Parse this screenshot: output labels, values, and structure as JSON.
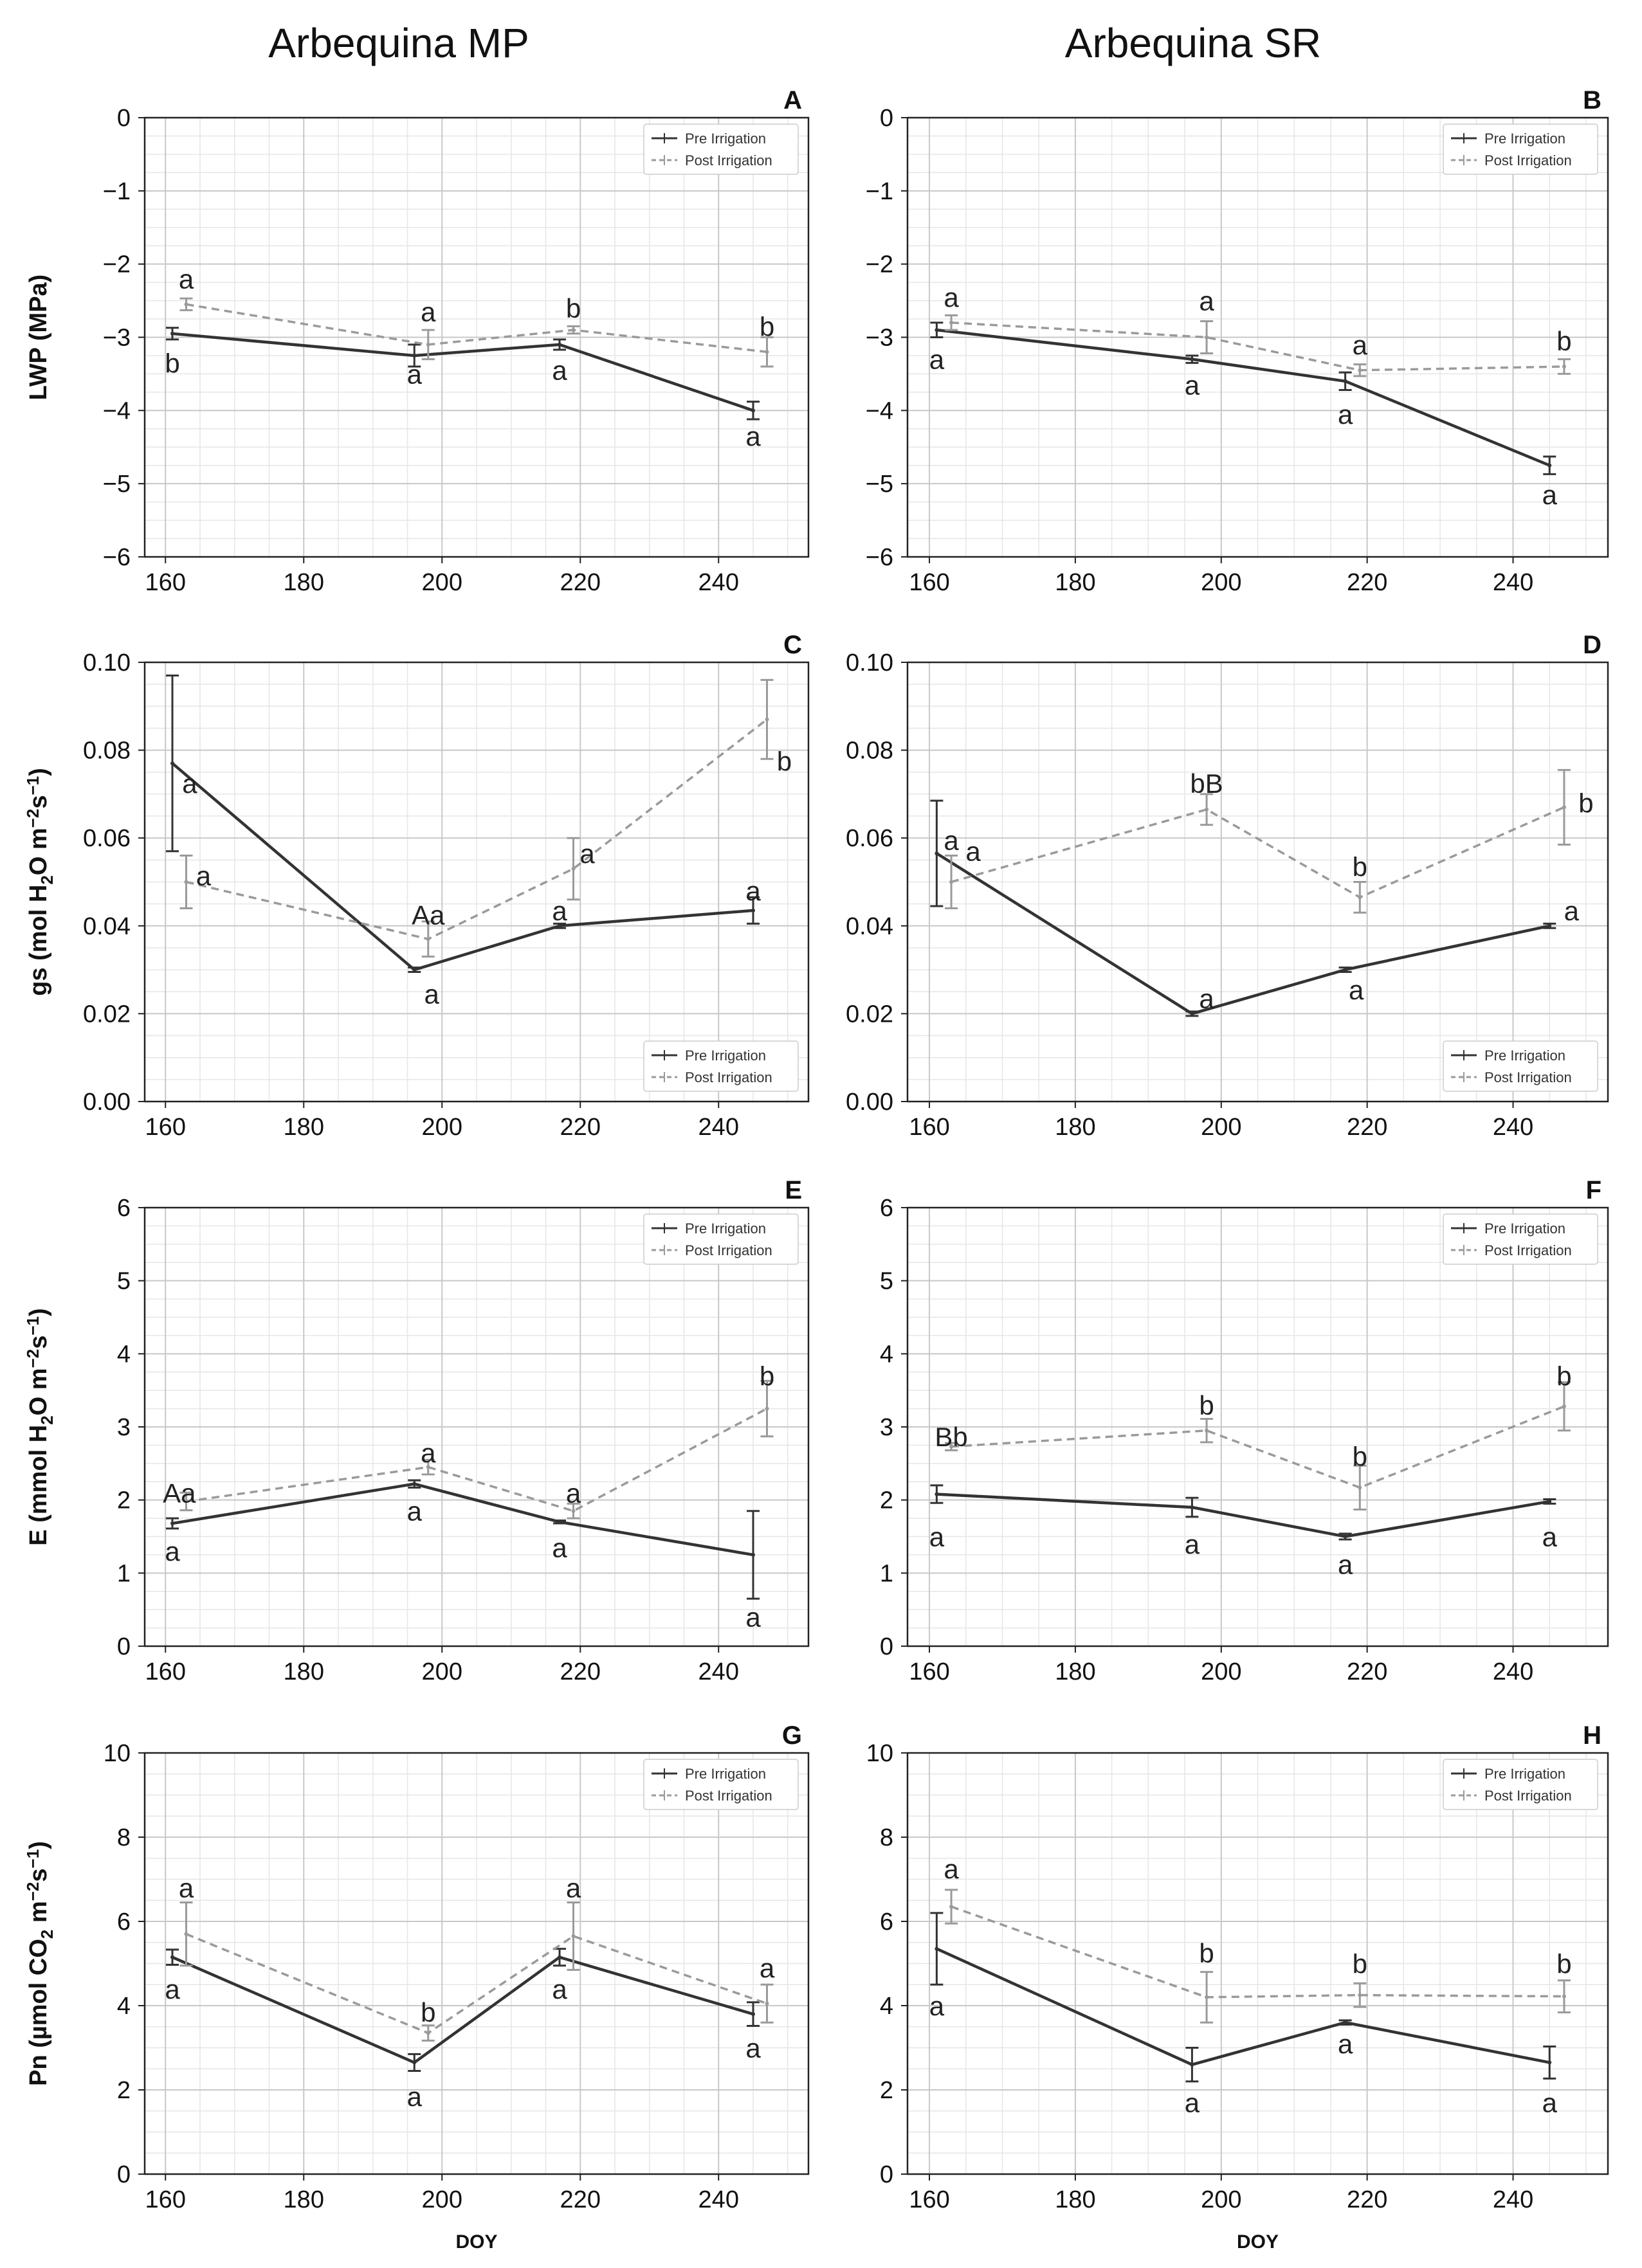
{
  "figure": {
    "column_titles": [
      "Arbequina MP",
      "Arbequina SR"
    ],
    "row_ylabels": [
      {
        "pre": "LWP (MPa)"
      },
      {
        "pre": "gs (mol H",
        "sub": "2",
        "post": "O m",
        "sup1": "−2",
        "post2": "s",
        "sup2": "−1",
        "close": ")"
      },
      {
        "pre": "E (mmol H",
        "sub": "2",
        "post": "O m",
        "sup1": "−2",
        "post2": "s",
        "sup2": "−1",
        "close": ")"
      },
      {
        "pre": "Pn (µmol CO",
        "sub": "2",
        "post": " m",
        "sup1": "−2",
        "post2": "s",
        "sup2": "−1",
        "close": ")"
      }
    ],
    "xlabel": "DOY",
    "colors": {
      "pre": "#333333",
      "post": "#9a9a9a",
      "grid_major": "#c8c8c8",
      "grid_minor": "#e6e6e6"
    }
  },
  "chart_data": [
    {
      "panel": "A",
      "type": "line",
      "xlabel": "",
      "ylabel": "LWP (MPa)",
      "xlim": [
        157,
        253
      ],
      "ylim": [
        -6,
        0
      ],
      "xticks": [
        160,
        180,
        200,
        220,
        240
      ],
      "yticks": [
        0,
        -1,
        -2,
        -3,
        -4,
        -5,
        -6
      ],
      "tick_labels_y": [
        "0",
        "−1",
        "−2",
        "−3",
        "−4",
        "−5",
        "−6"
      ],
      "legend": {
        "entries": [
          "Pre Irrigation",
          "Post Irrigation"
        ],
        "position": "top-right"
      },
      "series": [
        {
          "name": "Pre Irrigation",
          "x": [
            161,
            196,
            217,
            245
          ],
          "y": [
            -2.95,
            -3.25,
            -3.1,
            -4.0
          ],
          "err": [
            0.08,
            0.15,
            0.07,
            0.12
          ],
          "letters": [
            {
              "t": "b",
              "x": 161,
              "y": -3.35
            },
            {
              "t": "a",
              "x": 196,
              "y": -3.5
            },
            {
              "t": "a",
              "x": 217,
              "y": -3.45
            },
            {
              "t": "a",
              "x": 245,
              "y": -4.35
            }
          ]
        },
        {
          "name": "Post Irrigation",
          "x": [
            163,
            198,
            219,
            247
          ],
          "y": [
            -2.55,
            -3.1,
            -2.9,
            -3.2
          ],
          "err": [
            0.08,
            0.2,
            0.05,
            0.2
          ],
          "letters": [
            {
              "t": "a",
              "x": 163,
              "y": -2.2
            },
            {
              "t": "a",
              "x": 198,
              "y": -2.65
            },
            {
              "t": "b",
              "x": 219,
              "y": -2.6
            },
            {
              "t": "b",
              "x": 247,
              "y": -2.85
            }
          ]
        }
      ]
    },
    {
      "panel": "B",
      "type": "line",
      "xlabel": "",
      "ylabel": "LWP (MPa)",
      "xlim": [
        157,
        253
      ],
      "ylim": [
        -6,
        0
      ],
      "xticks": [
        160,
        180,
        200,
        220,
        240
      ],
      "yticks": [
        0,
        -1,
        -2,
        -3,
        -4,
        -5,
        -6
      ],
      "tick_labels_y": [
        "0",
        "−1",
        "−2",
        "−3",
        "−4",
        "−5",
        "−6"
      ],
      "legend": {
        "entries": [
          "Pre Irrigation",
          "Post Irrigation"
        ],
        "position": "top-right"
      },
      "series": [
        {
          "name": "Pre Irrigation",
          "x": [
            161,
            196,
            217,
            245
          ],
          "y": [
            -2.9,
            -3.3,
            -3.6,
            -4.75
          ],
          "err": [
            0.1,
            0.05,
            0.12,
            0.12
          ],
          "letters": [
            {
              "t": "a",
              "x": 161,
              "y": -3.3
            },
            {
              "t": "a",
              "x": 196,
              "y": -3.65
            },
            {
              "t": "a",
              "x": 217,
              "y": -4.05
            },
            {
              "t": "a",
              "x": 245,
              "y": -5.15
            }
          ]
        },
        {
          "name": "Post Irrigation",
          "x": [
            163,
            198,
            219,
            247
          ],
          "y": [
            -2.8,
            -3.0,
            -3.45,
            -3.4
          ],
          "err": [
            0.1,
            0.22,
            0.08,
            0.1
          ],
          "letters": [
            {
              "t": "a",
              "x": 163,
              "y": -2.45
            },
            {
              "t": "a",
              "x": 198,
              "y": -2.5
            },
            {
              "t": "a",
              "x": 219,
              "y": -3.1
            },
            {
              "t": "b",
              "x": 247,
              "y": -3.05
            }
          ]
        }
      ]
    },
    {
      "panel": "C",
      "type": "line",
      "xlabel": "",
      "ylabel": "gs (mol H2O m−2s−1)",
      "xlim": [
        157,
        253
      ],
      "ylim": [
        0,
        0.1
      ],
      "xticks": [
        160,
        180,
        200,
        220,
        240
      ],
      "yticks": [
        0,
        0.02,
        0.04,
        0.06,
        0.08,
        0.1
      ],
      "tick_labels_y": [
        "0.00",
        "0.02",
        "0.04",
        "0.06",
        "0.08",
        "0.10"
      ],
      "legend": {
        "entries": [
          "Pre Irrigation",
          "Post Irrigation"
        ],
        "position": "bottom-right"
      },
      "series": [
        {
          "name": "Pre Irrigation",
          "x": [
            161,
            196,
            217,
            245
          ],
          "y": [
            0.077,
            0.03,
            0.04,
            0.0435
          ],
          "err": [
            0.02,
            0.0005,
            0.0005,
            0.003
          ],
          "letters": [
            {
              "t": "a",
              "x": 163.5,
              "y": 0.0725
            },
            {
              "t": "a",
              "x": 198.5,
              "y": 0.0245
            },
            {
              "t": "a",
              "x": 217,
              "y": 0.0435
            },
            {
              "t": "a",
              "x": 245,
              "y": 0.048
            }
          ]
        },
        {
          "name": "Post Irrigation",
          "x": [
            163,
            198,
            219,
            247
          ],
          "y": [
            0.05,
            0.037,
            0.053,
            0.087
          ],
          "err": [
            0.006,
            0.004,
            0.007,
            0.009
          ],
          "letters": [
            {
              "t": "a",
              "x": 165.5,
              "y": 0.0515
            },
            {
              "t": "Aa",
              "x": 198,
              "y": 0.0425
            },
            {
              "t": "a",
              "x": 221,
              "y": 0.0565
            },
            {
              "t": "b",
              "x": 249.5,
              "y": 0.0775
            }
          ]
        }
      ]
    },
    {
      "panel": "D",
      "type": "line",
      "xlabel": "",
      "ylabel": "gs (mol H2O m−2s−1)",
      "xlim": [
        157,
        253
      ],
      "ylim": [
        0,
        0.1
      ],
      "xticks": [
        160,
        180,
        200,
        220,
        240
      ],
      "yticks": [
        0,
        0.02,
        0.04,
        0.06,
        0.08,
        0.1
      ],
      "tick_labels_y": [
        "0.00",
        "0.02",
        "0.04",
        "0.06",
        "0.08",
        "0.10"
      ],
      "legend": {
        "entries": [
          "Pre Irrigation",
          "Post Irrigation"
        ],
        "position": "bottom-right"
      },
      "series": [
        {
          "name": "Pre Irrigation",
          "x": [
            161,
            196,
            217,
            245
          ],
          "y": [
            0.0565,
            0.02,
            0.03,
            0.04
          ],
          "err": [
            0.012,
            0.0005,
            0.0005,
            0.0005
          ],
          "letters": [
            {
              "t": "a",
              "x": 163,
              "y": 0.0595
            },
            {
              "t": "a",
              "x": 198,
              "y": 0.0235
            },
            {
              "t": "a",
              "x": 218.5,
              "y": 0.0255
            },
            {
              "t": "a",
              "x": 248,
              "y": 0.0435
            }
          ]
        },
        {
          "name": "Post Irrigation",
          "x": [
            163,
            198,
            219,
            247
          ],
          "y": [
            0.05,
            0.0665,
            0.0465,
            0.067
          ],
          "err": [
            0.006,
            0.0035,
            0.0035,
            0.0085
          ],
          "letters": [
            {
              "t": "a",
              "x": 166,
              "y": 0.057
            },
            {
              "t": "bB",
              "x": 198,
              "y": 0.0725
            },
            {
              "t": "b",
              "x": 219,
              "y": 0.0535
            },
            {
              "t": "b",
              "x": 250,
              "y": 0.068
            }
          ]
        }
      ]
    },
    {
      "panel": "E",
      "type": "line",
      "xlabel": "",
      "ylabel": "E (mmol H2O m−2s−1)",
      "xlim": [
        157,
        253
      ],
      "ylim": [
        0,
        6
      ],
      "xticks": [
        160,
        180,
        200,
        220,
        240
      ],
      "yticks": [
        0,
        1,
        2,
        3,
        4,
        5,
        6
      ],
      "tick_labels_y": [
        "0",
        "1",
        "2",
        "3",
        "4",
        "5",
        "6"
      ],
      "legend": {
        "entries": [
          "Pre Irrigation",
          "Post Irrigation"
        ],
        "position": "top-right"
      },
      "series": [
        {
          "name": "Pre Irrigation",
          "x": [
            161,
            196,
            217,
            245
          ],
          "y": [
            1.68,
            2.22,
            1.7,
            1.25
          ],
          "err": [
            0.07,
            0.05,
            0.02,
            0.6
          ],
          "letters": [
            {
              "t": "a",
              "x": 161,
              "y": 1.3
            },
            {
              "t": "a",
              "x": 196,
              "y": 1.85
            },
            {
              "t": "a",
              "x": 217,
              "y": 1.35
            },
            {
              "t": "a",
              "x": 245,
              "y": 0.4
            }
          ]
        },
        {
          "name": "Post Irrigation",
          "x": [
            163,
            198,
            219,
            247
          ],
          "y": [
            1.98,
            2.45,
            1.85,
            3.25
          ],
          "err": [
            0.12,
            0.1,
            0.1,
            0.38
          ],
          "letters": [
            {
              "t": "Aa",
              "x": 162,
              "y": 2.1
            },
            {
              "t": "a",
              "x": 198,
              "y": 2.65
            },
            {
              "t": "a",
              "x": 219,
              "y": 2.1
            },
            {
              "t": "b",
              "x": 247,
              "y": 3.7
            }
          ]
        }
      ]
    },
    {
      "panel": "F",
      "type": "line",
      "xlabel": "",
      "ylabel": "E (mmol H2O m−2s−1)",
      "xlim": [
        157,
        253
      ],
      "ylim": [
        0,
        6
      ],
      "xticks": [
        160,
        180,
        200,
        220,
        240
      ],
      "yticks": [
        0,
        1,
        2,
        3,
        4,
        5,
        6
      ],
      "tick_labels_y": [
        "0",
        "1",
        "2",
        "3",
        "4",
        "5",
        "6"
      ],
      "legend": {
        "entries": [
          "Pre Irrigation",
          "Post Irrigation"
        ],
        "position": "top-right"
      },
      "series": [
        {
          "name": "Pre Irrigation",
          "x": [
            161,
            196,
            217,
            245
          ],
          "y": [
            2.08,
            1.9,
            1.5,
            1.98
          ],
          "err": [
            0.12,
            0.13,
            0.04,
            0.03
          ],
          "letters": [
            {
              "t": "a",
              "x": 161,
              "y": 1.5
            },
            {
              "t": "a",
              "x": 196,
              "y": 1.4
            },
            {
              "t": "a",
              "x": 217,
              "y": 1.12
            },
            {
              "t": "a",
              "x": 245,
              "y": 1.5
            }
          ]
        },
        {
          "name": "Post Irrigation",
          "x": [
            163,
            198,
            219,
            247
          ],
          "y": [
            2.73,
            2.95,
            2.17,
            3.28
          ],
          "err": [
            0.05,
            0.16,
            0.3,
            0.33
          ],
          "letters": [
            {
              "t": "Bb",
              "x": 163,
              "y": 2.87
            },
            {
              "t": "b",
              "x": 198,
              "y": 3.3
            },
            {
              "t": "b",
              "x": 219,
              "y": 2.6
            },
            {
              "t": "b",
              "x": 247,
              "y": 3.7
            }
          ]
        }
      ]
    },
    {
      "panel": "G",
      "type": "line",
      "xlabel": "DOY",
      "ylabel": "Pn (µmol CO2 m−2s−1)",
      "xlim": [
        157,
        253
      ],
      "ylim": [
        0,
        10
      ],
      "xticks": [
        160,
        180,
        200,
        220,
        240
      ],
      "yticks": [
        0,
        2,
        4,
        6,
        8,
        10
      ],
      "tick_labels_y": [
        "0",
        "2",
        "4",
        "6",
        "8",
        "10"
      ],
      "legend": {
        "entries": [
          "Pre Irrigation",
          "Post Irrigation"
        ],
        "position": "top-right"
      },
      "series": [
        {
          "name": "Pre Irrigation",
          "x": [
            161,
            196,
            217,
            245
          ],
          "y": [
            5.15,
            2.65,
            5.15,
            3.8
          ],
          "err": [
            0.18,
            0.2,
            0.2,
            0.28
          ],
          "letters": [
            {
              "t": "a",
              "x": 161,
              "y": 4.4
            },
            {
              "t": "a",
              "x": 196,
              "y": 1.85
            },
            {
              "t": "a",
              "x": 217,
              "y": 4.4
            },
            {
              "t": "a",
              "x": 245,
              "y": 3.0
            }
          ]
        },
        {
          "name": "Post Irrigation",
          "x": [
            163,
            198,
            219,
            247
          ],
          "y": [
            5.7,
            3.35,
            5.65,
            4.05
          ],
          "err": [
            0.75,
            0.18,
            0.8,
            0.45
          ],
          "letters": [
            {
              "t": "a",
              "x": 163,
              "y": 6.8
            },
            {
              "t": "b",
              "x": 198,
              "y": 3.85
            },
            {
              "t": "a",
              "x": 219,
              "y": 6.8
            },
            {
              "t": "a",
              "x": 247,
              "y": 4.9
            }
          ]
        }
      ]
    },
    {
      "panel": "H",
      "type": "line",
      "xlabel": "DOY",
      "ylabel": "Pn (µmol CO2 m−2s−1)",
      "xlim": [
        157,
        253
      ],
      "ylim": [
        0,
        10
      ],
      "xticks": [
        160,
        180,
        200,
        220,
        240
      ],
      "yticks": [
        0,
        2,
        4,
        6,
        8,
        10
      ],
      "tick_labels_y": [
        "0",
        "2",
        "4",
        "6",
        "8",
        "10"
      ],
      "legend": {
        "entries": [
          "Pre Irrigation",
          "Post Irrigation"
        ],
        "position": "top-right"
      },
      "series": [
        {
          "name": "Pre Irrigation",
          "x": [
            161,
            196,
            217,
            245
          ],
          "y": [
            5.35,
            2.6,
            3.6,
            2.65
          ],
          "err": [
            0.85,
            0.4,
            0.05,
            0.38
          ],
          "letters": [
            {
              "t": "a",
              "x": 161,
              "y": 4.0
            },
            {
              "t": "a",
              "x": 196,
              "y": 1.7
            },
            {
              "t": "a",
              "x": 217,
              "y": 3.1
            },
            {
              "t": "a",
              "x": 245,
              "y": 1.7
            }
          ]
        },
        {
          "name": "Post Irrigation",
          "x": [
            163,
            198,
            219,
            247
          ],
          "y": [
            6.35,
            4.2,
            4.25,
            4.22
          ],
          "err": [
            0.4,
            0.6,
            0.28,
            0.38
          ],
          "letters": [
            {
              "t": "a",
              "x": 163,
              "y": 7.25
            },
            {
              "t": "b",
              "x": 198,
              "y": 5.25
            },
            {
              "t": "b",
              "x": 219,
              "y": 5.0
            },
            {
              "t": "b",
              "x": 247,
              "y": 5.0
            }
          ]
        }
      ]
    }
  ]
}
